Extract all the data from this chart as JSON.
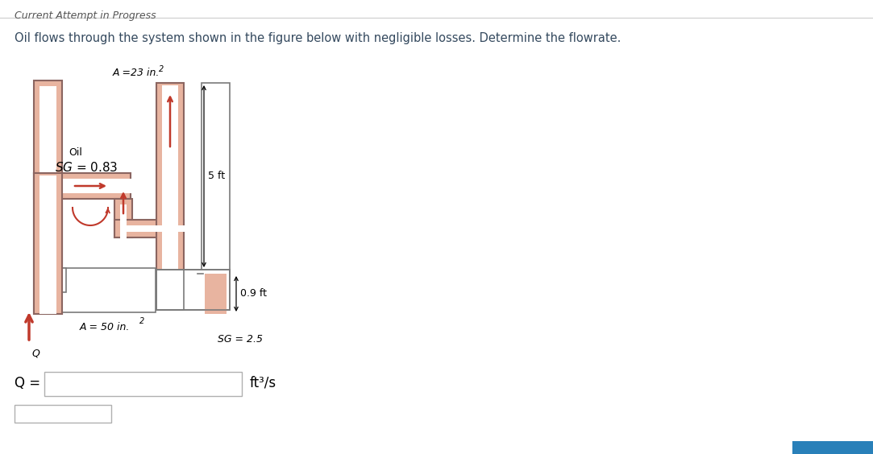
{
  "title_text": "Current Attempt in Progress",
  "problem_text": "Oil flows through the system shown in the figure below with negligible losses. Determine the flowrate.",
  "label_A_top": "A =23 in.",
  "label_A_top_sup": "2",
  "label_oil": "Oil",
  "label_sg_oil": "SG = 0.83",
  "label_5ft": "5 ft",
  "label_09ft": "0.9 ft",
  "label_A_bot": "A = 50 in.",
  "label_A_bot_sup": "2",
  "label_sg_heavy": "SG = 2.5",
  "label_Q": "Q =",
  "label_units": "ft³/s",
  "pipe_color": "#e8b4a0",
  "pipe_border_color": "#8B6560",
  "manometer_border": "#7a7a7a",
  "heavy_fluid_color": "#e8b4a0",
  "bg_color": "#ffffff",
  "text_color": "#34495e",
  "arrow_color": "#c0392b",
  "blue_bar_color": "#2980b9",
  "title_color": "#555555",
  "input_border": "#b0b0b0"
}
